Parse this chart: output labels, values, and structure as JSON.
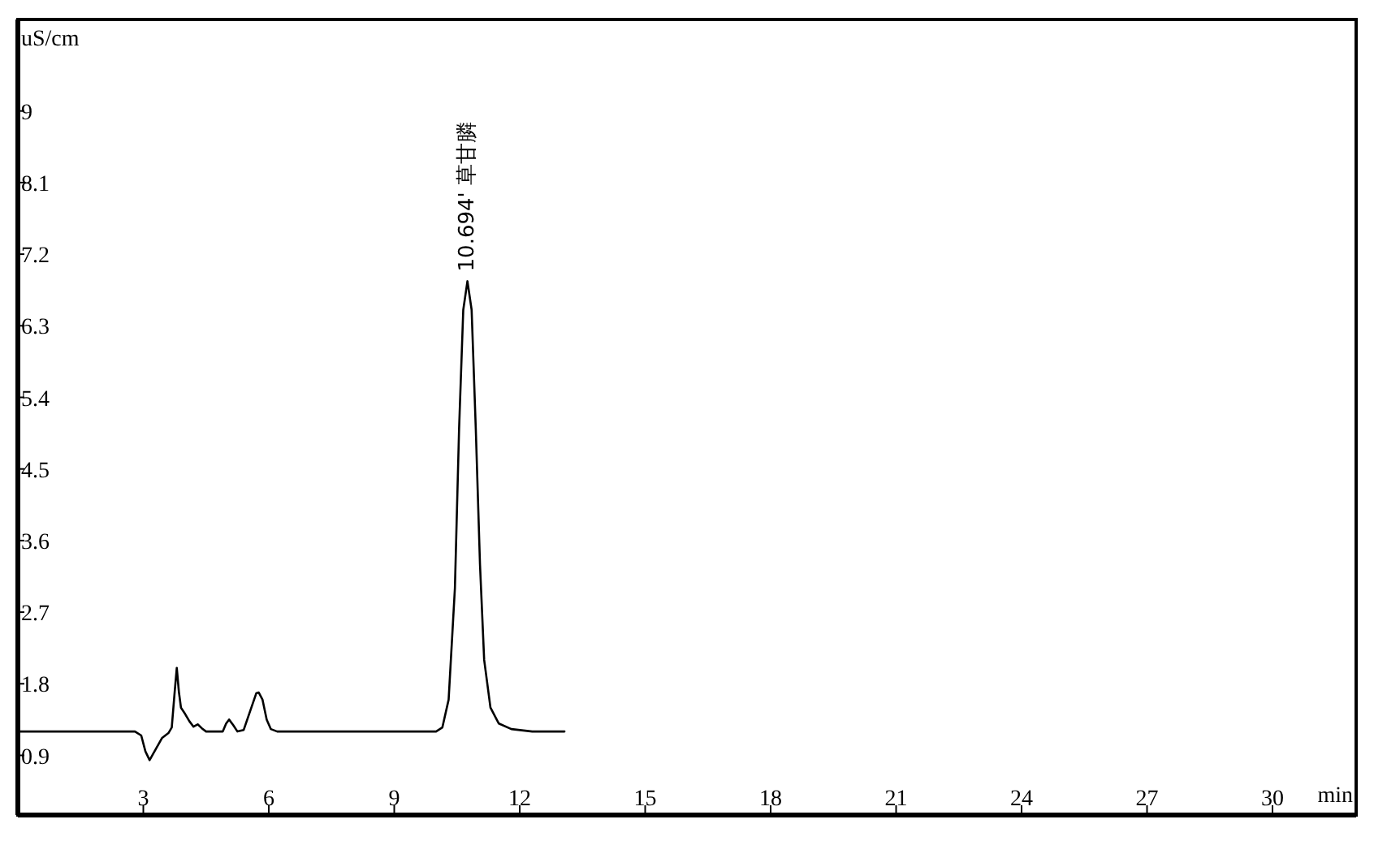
{
  "chart_data": {
    "type": "line",
    "xlabel": "min",
    "ylabel": "uS/cm",
    "xlim": [
      0,
      32
    ],
    "ylim": [
      0.15,
      10.15
    ],
    "xticks": [
      3,
      6,
      9,
      12,
      15,
      18,
      21,
      24,
      27,
      30
    ],
    "yticks": [
      0.9,
      1.8,
      2.7,
      3.6,
      4.5,
      5.4,
      6.3,
      7.2,
      8.1,
      9
    ],
    "grid": false,
    "marker": "none",
    "line_style": "solid",
    "annotations": [
      {
        "text": "10.694' 草甘膦",
        "x": 10.694,
        "y": 6.86
      }
    ],
    "series": [
      {
        "color": "#000000",
        "x": [
          0,
          2.8,
          2.95,
          3.05,
          3.15,
          3.3,
          3.45,
          3.6,
          3.68,
          3.75,
          3.8,
          3.85,
          3.9,
          4.0,
          4.1,
          4.2,
          4.3,
          4.4,
          4.5,
          4.9,
          4.98,
          5.05,
          5.15,
          5.25,
          5.4,
          5.55,
          5.7,
          5.76,
          5.85,
          5.95,
          6.05,
          6.2,
          10.0,
          10.15,
          10.3,
          10.45,
          10.55,
          10.65,
          10.75,
          10.85,
          10.95,
          11.05,
          11.15,
          11.3,
          11.5,
          11.8,
          12.3,
          13.07
        ],
        "values": [
          1.2,
          1.2,
          1.15,
          0.95,
          0.84,
          0.98,
          1.12,
          1.18,
          1.25,
          1.7,
          2.0,
          1.7,
          1.5,
          1.42,
          1.33,
          1.26,
          1.29,
          1.24,
          1.2,
          1.2,
          1.3,
          1.35,
          1.28,
          1.2,
          1.22,
          1.45,
          1.68,
          1.69,
          1.6,
          1.35,
          1.23,
          1.2,
          1.2,
          1.25,
          1.6,
          3.0,
          5.0,
          6.5,
          6.86,
          6.5,
          5.0,
          3.3,
          2.1,
          1.5,
          1.3,
          1.23,
          1.2,
          1.2
        ]
      }
    ]
  }
}
